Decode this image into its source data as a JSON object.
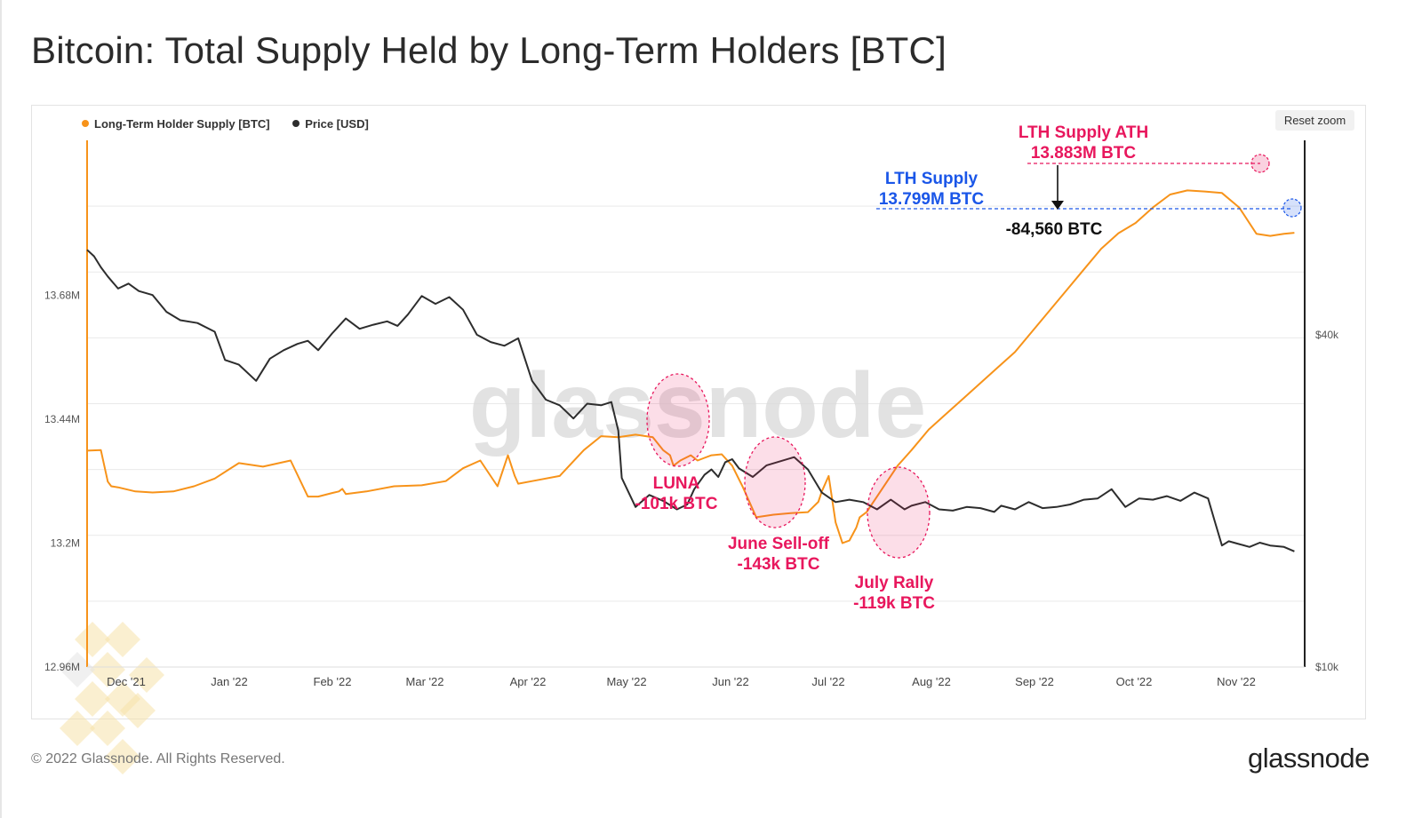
{
  "title": "Bitcoin: Total Supply Held by Long-Term Holders [BTC]",
  "reset_zoom": "Reset zoom",
  "footer": {
    "copyright": "© 2022 Glassnode. All Rights Reserved.",
    "brand": "glassnode"
  },
  "watermark": "glassnode",
  "chart_data": {
    "type": "line",
    "title": "Bitcoin: Total Supply Held by Long-Term Holders [BTC]",
    "legend": {
      "position": "top-left",
      "entries": [
        "Long-Term Holder Supply [BTC]",
        "Price [USD]"
      ]
    },
    "colors": {
      "lth": "#f7931a",
      "price": "#2d2d2d",
      "annot_red": "#e8175d",
      "annot_blue": "#1a56e8",
      "annot_black": "#111111"
    },
    "x_ticks": [
      "Dec '21",
      "Jan '22",
      "Feb '22",
      "Mar '22",
      "Apr '22",
      "May '22",
      "Jun '22",
      "Jul '22",
      "Aug '22",
      "Sep '22",
      "Oct '22",
      "Nov '22"
    ],
    "x_range_days": [
      -9,
      344
    ],
    "y_left": {
      "label": "Long-Term Holder Supply [BTC]",
      "scale": "linear",
      "range": [
        12.96,
        13.98
      ],
      "tick_values": [
        12.96,
        13.2,
        13.44,
        13.68
      ],
      "tick_labels": [
        "12.96M",
        "13.2M",
        "13.44M",
        "13.68M"
      ]
    },
    "y_right": {
      "label": "Price [USD]",
      "scale": "log",
      "range": [
        10000,
        90000
      ],
      "tick_values": [
        10000,
        40000
      ],
      "tick_labels": [
        "$10k",
        "$40k"
      ]
    },
    "series": [
      {
        "name": "Long-Term Holder Supply [BTC]",
        "axis": "left",
        "color": "#f7931a",
        "x_days": [
          -9,
          -5,
          -3,
          -2,
          0,
          5,
          10,
          16,
          22,
          28,
          35,
          42,
          50,
          55,
          58,
          62,
          64,
          65,
          66,
          72,
          80,
          88,
          95,
          100,
          105,
          110,
          113,
          115,
          116,
          120,
          128,
          135,
          140,
          145,
          150,
          155,
          158,
          160,
          161,
          163,
          166,
          168,
          170,
          172,
          175,
          178,
          181,
          185,
          190,
          195,
          200,
          203,
          204,
          206,
          208,
          210,
          212,
          214,
          215,
          217,
          220,
          223,
          226,
          230,
          235,
          240,
          245,
          250,
          255,
          260,
          265,
          270,
          275,
          280,
          285,
          290,
          295,
          300,
          305,
          310,
          315,
          320,
          325,
          330,
          334,
          338,
          341
        ],
        "values": [
          13.379,
          13.38,
          13.319,
          13.31,
          13.308,
          13.3,
          13.298,
          13.3,
          13.31,
          13.325,
          13.355,
          13.348,
          13.36,
          13.29,
          13.29,
          13.297,
          13.3,
          13.305,
          13.295,
          13.3,
          13.31,
          13.312,
          13.32,
          13.345,
          13.36,
          13.31,
          13.37,
          13.33,
          13.315,
          13.32,
          13.33,
          13.38,
          13.407,
          13.405,
          13.41,
          13.405,
          13.38,
          13.37,
          13.35,
          13.36,
          13.37,
          13.36,
          13.365,
          13.37,
          13.372,
          13.35,
          13.31,
          13.25,
          13.255,
          13.258,
          13.26,
          13.28,
          13.3,
          13.33,
          13.24,
          13.2,
          13.205,
          13.23,
          13.25,
          13.26,
          13.29,
          13.32,
          13.35,
          13.38,
          13.42,
          13.45,
          13.48,
          13.51,
          13.54,
          13.57,
          13.61,
          13.65,
          13.69,
          13.73,
          13.77,
          13.8,
          13.82,
          13.85,
          13.875,
          13.883,
          13.881,
          13.878,
          13.85,
          13.799,
          13.795,
          13.799,
          13.801
        ]
      },
      {
        "name": "Price [USD]",
        "axis": "right",
        "color": "#2d2d2d",
        "x_days": [
          -9,
          -7,
          -5,
          -3,
          0,
          3,
          6,
          10,
          14,
          18,
          23,
          28,
          31,
          35,
          40,
          44,
          48,
          52,
          55,
          58,
          62,
          66,
          70,
          74,
          78,
          81,
          84,
          88,
          92,
          96,
          100,
          104,
          108,
          112,
          116,
          120,
          124,
          128,
          132,
          136,
          140,
          143,
          145,
          146,
          150,
          154,
          158,
          162,
          165,
          167,
          170,
          172,
          174,
          176,
          178,
          180,
          184,
          188,
          192,
          196,
          200,
          204,
          208,
          212,
          216,
          220,
          224,
          228,
          230,
          234,
          238,
          242,
          246,
          250,
          254,
          256,
          260,
          264,
          268,
          272,
          276,
          280,
          284,
          288,
          292,
          296,
          300,
          304,
          308,
          312,
          316,
          318,
          320,
          322,
          325,
          328,
          331,
          334,
          338,
          341
        ],
        "values": [
          57000,
          55500,
          53000,
          51000,
          48500,
          49500,
          48000,
          47200,
          44000,
          42500,
          42000,
          40500,
          36000,
          35300,
          33000,
          36200,
          37500,
          38500,
          39000,
          37500,
          40200,
          42800,
          41000,
          41700,
          42300,
          41500,
          43500,
          47000,
          45500,
          46800,
          44400,
          40000,
          38800,
          38200,
          39400,
          33000,
          30500,
          29800,
          28200,
          30000,
          29800,
          30200,
          26800,
          22000,
          19500,
          20500,
          20000,
          19300,
          19700,
          21000,
          22300,
          22800,
          22100,
          23500,
          23800,
          22900,
          22100,
          23200,
          23600,
          24000,
          22800,
          20700,
          19900,
          20100,
          19900,
          19300,
          20100,
          19300,
          19600,
          19900,
          19300,
          19200,
          19500,
          19400,
          19100,
          19600,
          19300,
          19900,
          19400,
          19500,
          19700,
          20100,
          20200,
          21000,
          19500,
          20200,
          20100,
          20400,
          20000,
          20700,
          20200,
          18300,
          16600,
          16900,
          16700,
          16500,
          16800,
          16600,
          16500,
          16200
        ]
      }
    ],
    "annotations": [
      {
        "text": "LUNA",
        "text2": "-101k BTC",
        "color": "#e8175d"
      },
      {
        "text": "June Sell-off",
        "text2": "-143k BTC",
        "color": "#e8175d"
      },
      {
        "text": "July Rally",
        "text2": "-119k BTC",
        "color": "#e8175d"
      },
      {
        "text": "LTH Supply ATH",
        "text2": "13.883M BTC",
        "color": "#e8175d"
      },
      {
        "text": "LTH Supply",
        "text2": "13.799M BTC",
        "color": "#1a56e8"
      },
      {
        "text": "-84,560 BTC",
        "color": "#111111"
      }
    ]
  }
}
